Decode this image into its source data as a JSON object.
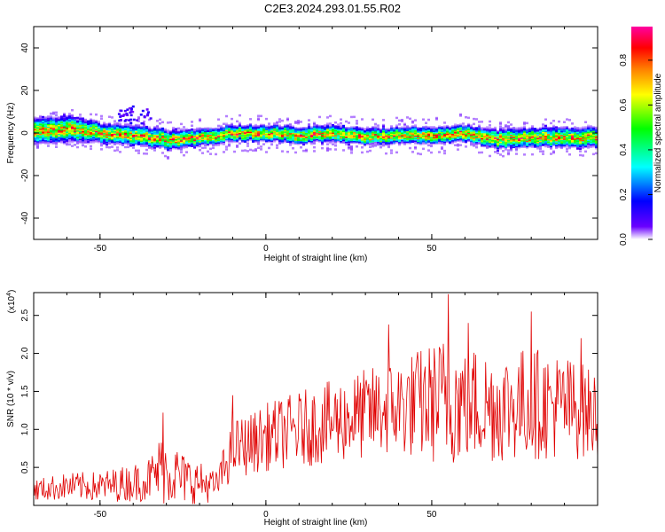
{
  "title": "C2E3.2024.293.01.55.R02",
  "chart_data": [
    {
      "type": "heatmap",
      "xlabel": "Height of straight line (km)",
      "ylabel": "Frequency (Hz)",
      "xlim": [
        -70,
        100
      ],
      "ylim": [
        -50,
        50
      ],
      "x_ticks": [
        -50,
        0,
        50
      ],
      "y_ticks": [
        -40,
        -20,
        0,
        20,
        40
      ],
      "colorbar": {
        "label": "Normalized spectral amplitude",
        "range": [
          0,
          0.95
        ],
        "ticks": [
          "0.0",
          "0.2",
          "0.4",
          "0.6",
          "0.8"
        ],
        "tick_values": [
          0.0,
          0.2,
          0.4,
          0.6,
          0.8
        ],
        "colors": [
          "#ffffff",
          "#6a00ff",
          "#0000ff",
          "#00ffff",
          "#00ff00",
          "#ffff00",
          "#ff8000",
          "#ff0000",
          "#ff00a0"
        ]
      },
      "ridge": {
        "x": [
          -70,
          -60,
          -50,
          -40,
          -30,
          -20,
          -10,
          0,
          10,
          20,
          30,
          40,
          50,
          60,
          70,
          80,
          90,
          99
        ],
        "y": [
          1,
          2,
          0,
          -1,
          -3,
          -2,
          0,
          0,
          -1,
          0,
          -2,
          -1,
          -1,
          0,
          -3,
          -2,
          -2,
          -2
        ],
        "width_hz": [
          4,
          4,
          3,
          3,
          3,
          2.5,
          2.5,
          2.5,
          2.5,
          2.5,
          2.5,
          2.5,
          2.5,
          2.5,
          3,
          3,
          3,
          3
        ]
      }
    },
    {
      "type": "line",
      "xlabel": "Height of straight line (km)",
      "ylabel": "SNR (10 * v/v)",
      "y_multiplier": "(x10",
      "y_multiplier_exp": "4",
      "y_multiplier_close": ")",
      "xlim": [
        -70,
        100
      ],
      "ylim": [
        0,
        2.8
      ],
      "x_ticks": [
        -50,
        0,
        50
      ],
      "y_ticks": [
        0.5,
        1.0,
        1.5,
        2.0,
        2.5
      ],
      "y_tick_labels": [
        "0.5",
        "1.0",
        "1.5",
        "2.0",
        "2.5"
      ],
      "series": [
        {
          "color": "#e00000",
          "envelope_x": [
            -70,
            -60,
            -50,
            -40,
            -35,
            -31,
            -25,
            -15,
            -10,
            -5,
            0,
            10,
            20,
            30,
            40,
            50,
            55,
            60,
            70,
            80,
            90,
            99
          ],
          "envelope_mean": [
            0.2,
            0.25,
            0.25,
            0.3,
            0.35,
            0.5,
            0.35,
            0.25,
            0.75,
            0.8,
            0.9,
            1.0,
            1.1,
            1.2,
            1.3,
            1.35,
            1.4,
            1.35,
            1.3,
            1.35,
            1.3,
            1.2
          ],
          "envelope_amp": [
            0.15,
            0.18,
            0.2,
            0.25,
            0.3,
            0.5,
            0.35,
            0.2,
            0.4,
            0.4,
            0.45,
            0.5,
            0.55,
            0.6,
            0.65,
            0.8,
            0.9,
            0.8,
            0.75,
            0.75,
            0.7,
            0.6
          ],
          "peaks": [
            {
              "x": -31,
              "y": 1.22
            },
            {
              "x": -10,
              "y": 1.45
            },
            {
              "x": 37,
              "y": 2.38
            },
            {
              "x": 55,
              "y": 2.78
            },
            {
              "x": 61,
              "y": 2.4
            },
            {
              "x": 80,
              "y": 2.55
            },
            {
              "x": 95,
              "y": 2.2
            }
          ]
        }
      ]
    }
  ]
}
